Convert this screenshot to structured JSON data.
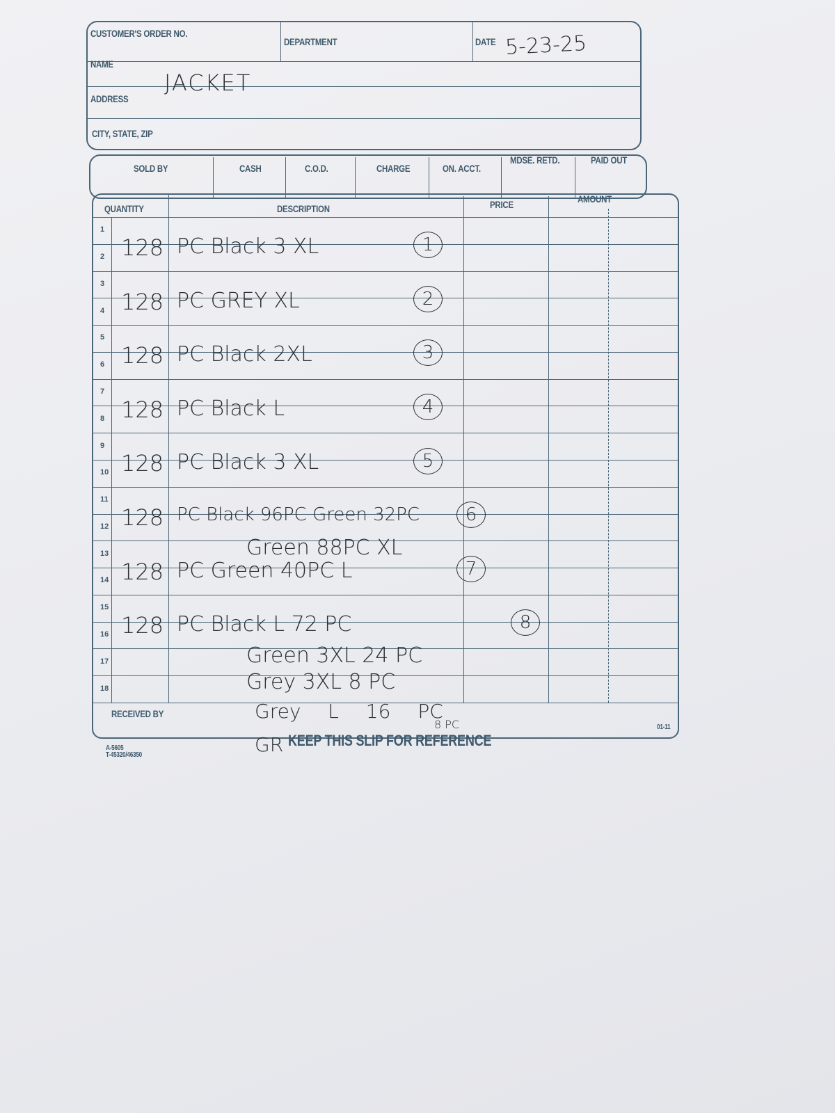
{
  "form": {
    "customer_order_label": "CUSTOMER'S ORDER NO.",
    "department_label": "DEPARTMENT",
    "date_label": "DATE",
    "date_value": "5-23-25",
    "name_label": "NAME",
    "name_value": "JACKET",
    "address_label": "ADDRESS",
    "city_label": "CITY, STATE, ZIP",
    "payment_columns": [
      "SOLD BY",
      "CASH",
      "C.O.D.",
      "CHARGE",
      "ON. ACCT.",
      "MDSE. RETD.",
      "PAID OUT"
    ],
    "table_headers": {
      "quantity": "QUANTITY",
      "description": "DESCRIPTION",
      "price": "PRICE",
      "amount": "AMOUNT"
    },
    "received_by_label": "RECEIVED BY",
    "footer_text": "KEEP THIS SLIP FOR REFERENCE",
    "form_code_1": "A-5605",
    "form_code_2": "T-45320/46350",
    "revision": "01-11"
  },
  "rows": [
    {
      "line": "1",
      "quantity": "",
      "description": "",
      "item_no": ""
    },
    {
      "line": "2",
      "quantity": "128",
      "description": "PC Black 3 XL",
      "item_no": "1"
    },
    {
      "line": "3",
      "quantity": "",
      "description": "",
      "item_no": ""
    },
    {
      "line": "4",
      "quantity": "128",
      "description": "PC GREY XL",
      "item_no": "2"
    },
    {
      "line": "5",
      "quantity": "",
      "description": "",
      "item_no": ""
    },
    {
      "line": "6",
      "quantity": "128",
      "description": "PC Black 2XL",
      "item_no": "3"
    },
    {
      "line": "7",
      "quantity": "",
      "description": "",
      "item_no": ""
    },
    {
      "line": "8",
      "quantity": "128",
      "description": "PC Black L",
      "item_no": "4"
    },
    {
      "line": "9",
      "quantity": "",
      "description": "",
      "item_no": ""
    },
    {
      "line": "10",
      "quantity": "128",
      "description": "PC Black 3 XL",
      "item_no": "5"
    },
    {
      "line": "11",
      "quantity": "",
      "description": "",
      "item_no": ""
    },
    {
      "line": "12",
      "quantity": "128",
      "description": "PC Black 96PC Green 32PC",
      "item_no": "6"
    },
    {
      "line": "13",
      "quantity": "",
      "description": "Green 88PC XL",
      "item_no": ""
    },
    {
      "line": "14",
      "quantity": "128",
      "description": "PC Green 40PC L",
      "item_no": "7"
    },
    {
      "line": "15",
      "quantity": "",
      "description": "",
      "item_no": ""
    },
    {
      "line": "16",
      "quantity": "128",
      "description": "PC Black L 72 PC",
      "item_no": "8"
    },
    {
      "line": "17",
      "quantity": "",
      "description": "Green 3XL 24 PC",
      "item_no": ""
    },
    {
      "line": "18",
      "quantity": "",
      "description": "Grey 3XL 8 PC",
      "item_no": ""
    }
  ],
  "overflow_notes": [
    "Grey L 16 PC",
    "8 PC",
    "GR"
  ],
  "colors": {
    "form_ink": "#4a6577",
    "handwriting": "#2b2f33",
    "paper": "#eceDf0"
  }
}
